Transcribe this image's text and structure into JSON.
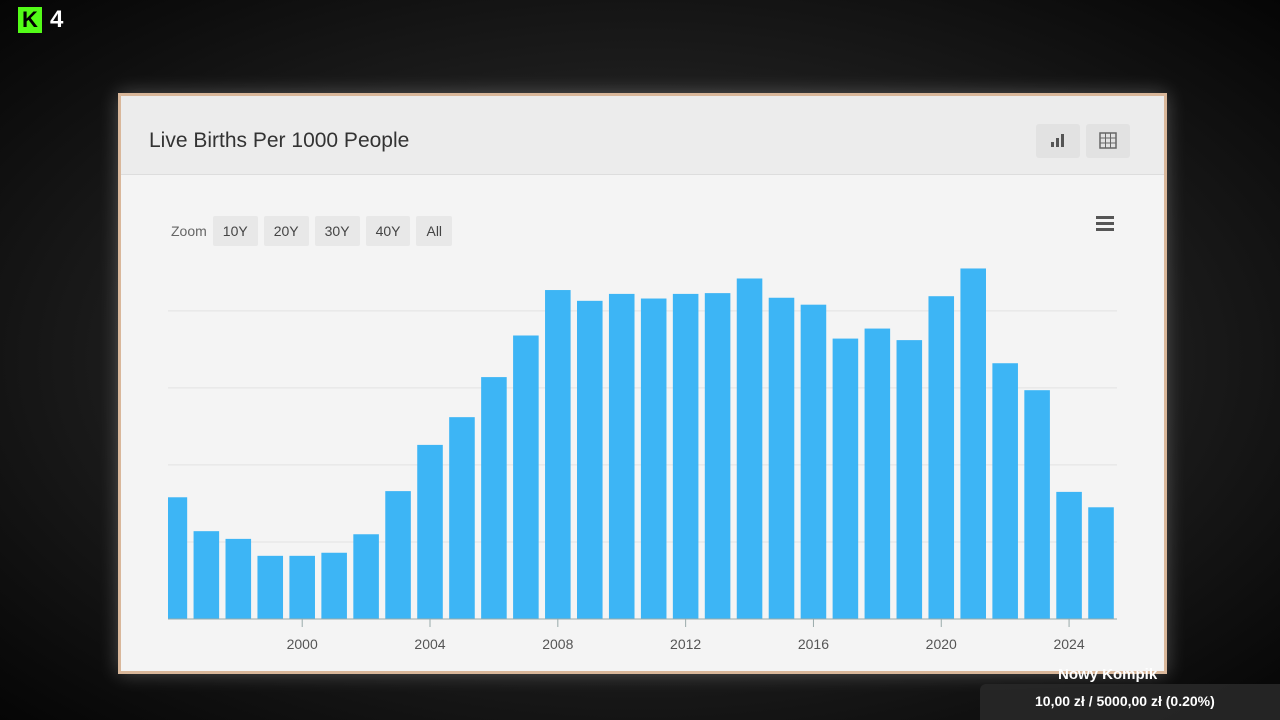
{
  "overlay": {
    "logo_letter": "K",
    "logo_number": "4",
    "goal_title": "Nowy Kompik",
    "goal_amount": "10,00 zł / 5000,00 zł (0.20%)"
  },
  "zoom": {
    "label": "Zoom",
    "buttons": [
      "10Y",
      "20Y",
      "30Y",
      "40Y",
      "All"
    ]
  },
  "chart_data": {
    "type": "bar",
    "title": "Live Births Per 1000 People",
    "color": "#3db5f5",
    "grid": true,
    "x": [
      1996,
      1997,
      1998,
      1999,
      2000,
      2001,
      2002,
      2003,
      2004,
      2005,
      2006,
      2007,
      2008,
      2009,
      2010,
      2011,
      2012,
      2013,
      2014,
      2015,
      2016,
      2017,
      2018,
      2019,
      2020,
      2021,
      2022,
      2023,
      2024,
      2025
    ],
    "values": [
      1.58,
      1.14,
      1.04,
      0.82,
      0.82,
      0.86,
      1.1,
      1.66,
      2.26,
      2.62,
      3.14,
      3.68,
      4.27,
      4.13,
      4.22,
      4.16,
      4.22,
      4.23,
      4.42,
      4.17,
      4.08,
      3.64,
      3.77,
      3.62,
      4.19,
      4.55,
      3.32,
      2.97,
      1.65,
      1.45
    ],
    "xlim": [
      1995.8,
      2025.5
    ],
    "xticks": [
      2000,
      2004,
      2008,
      2012,
      2016,
      2020,
      2024
    ],
    "ylim": [
      0,
      4.66
    ],
    "yticks": [
      1,
      2,
      3,
      4
    ]
  }
}
